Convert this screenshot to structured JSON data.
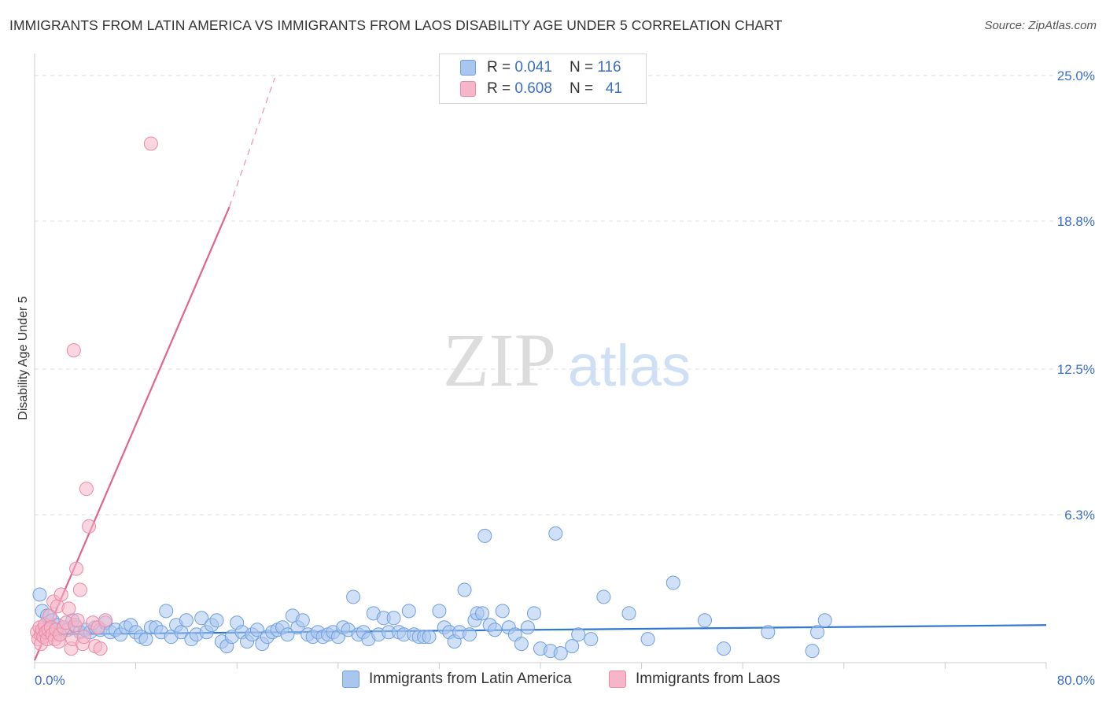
{
  "header": {
    "title": "IMMIGRANTS FROM LATIN AMERICA VS IMMIGRANTS FROM LAOS DISABILITY AGE UNDER 5 CORRELATION CHART",
    "source": "Source: ZipAtlas.com"
  },
  "watermark": {
    "zip": "ZIP",
    "atlas": "atlas"
  },
  "legend": {
    "rows": [
      {
        "r_label": "R =",
        "r_value": "0.041",
        "n_label": "N =",
        "n_value": "116"
      },
      {
        "r_label": "R =",
        "r_value": "0.608",
        "n_label": "N =",
        "n_value": "41"
      }
    ]
  },
  "bottom_legend": {
    "series1": "Immigrants from Latin America",
    "series2": "Immigrants from Laos"
  },
  "colors": {
    "blue_fill": "#a9c6ee",
    "blue_stroke": "#6f9fde",
    "blue_line": "#2f78d0",
    "pink_fill": "#f6b5c8",
    "pink_stroke": "#e98aa6",
    "pink_line": "#e0648e",
    "axis_label": "#3a6fc4",
    "grid": "#dddddd"
  },
  "chart_data": {
    "type": "scatter",
    "title": "IMMIGRANTS FROM LATIN AMERICA VS IMMIGRANTS FROM LAOS DISABILITY AGE UNDER 5 CORRELATION CHART",
    "xlabel": "",
    "ylabel": "Disability Age Under 5",
    "xlim": [
      0,
      80
    ],
    "ylim": [
      0,
      25.6
    ],
    "x_tick_labels": [
      "0.0%",
      "80.0%"
    ],
    "y_ticks": [
      6.3,
      12.5,
      18.8,
      25.0
    ],
    "y_tick_labels": [
      "6.3%",
      "12.5%",
      "18.8%",
      "25.0%"
    ],
    "grid": "horizontal dashed",
    "legend_position": "top-center",
    "series": [
      {
        "name": "Immigrants from Latin America",
        "color": "#a9c6ee",
        "R": 0.041,
        "N": 116,
        "trend": {
          "x": [
            0,
            80
          ],
          "y": [
            1.2,
            1.6
          ]
        },
        "points": [
          [
            0.4,
            2.9
          ],
          [
            0.6,
            2.2
          ],
          [
            0.8,
            1.3
          ],
          [
            1.0,
            2.0
          ],
          [
            1.2,
            1.5
          ],
          [
            1.4,
            1.8
          ],
          [
            1.6,
            1.4
          ],
          [
            1.8,
            1.6
          ],
          [
            2.0,
            1.2
          ],
          [
            2.3,
            1.5
          ],
          [
            2.6,
            1.4
          ],
          [
            3.0,
            1.8
          ],
          [
            3.3,
            1.5
          ],
          [
            3.6,
            1.3
          ],
          [
            4.0,
            1.4
          ],
          [
            4.4,
            1.3
          ],
          [
            4.8,
            1.5
          ],
          [
            5.2,
            1.4
          ],
          [
            5.6,
            1.7
          ],
          [
            6.0,
            1.3
          ],
          [
            6.4,
            1.4
          ],
          [
            6.8,
            1.2
          ],
          [
            7.2,
            1.5
          ],
          [
            7.6,
            1.6
          ],
          [
            8.0,
            1.3
          ],
          [
            8.4,
            1.1
          ],
          [
            8.8,
            1.0
          ],
          [
            9.2,
            1.5
          ],
          [
            9.6,
            1.5
          ],
          [
            10.0,
            1.3
          ],
          [
            10.4,
            2.2
          ],
          [
            10.8,
            1.1
          ],
          [
            11.2,
            1.6
          ],
          [
            11.6,
            1.3
          ],
          [
            12.0,
            1.8
          ],
          [
            12.4,
            1.0
          ],
          [
            12.8,
            1.2
          ],
          [
            13.2,
            1.9
          ],
          [
            13.6,
            1.3
          ],
          [
            14.0,
            1.6
          ],
          [
            14.4,
            1.8
          ],
          [
            14.8,
            0.9
          ],
          [
            15.2,
            0.7
          ],
          [
            15.6,
            1.1
          ],
          [
            16.0,
            1.7
          ],
          [
            16.4,
            1.3
          ],
          [
            16.8,
            0.9
          ],
          [
            17.2,
            1.2
          ],
          [
            17.6,
            1.4
          ],
          [
            18.0,
            0.8
          ],
          [
            18.4,
            1.1
          ],
          [
            18.8,
            1.3
          ],
          [
            19.2,
            1.4
          ],
          [
            19.6,
            1.5
          ],
          [
            20.0,
            1.2
          ],
          [
            20.4,
            2.0
          ],
          [
            20.8,
            1.5
          ],
          [
            21.2,
            1.8
          ],
          [
            21.6,
            1.2
          ],
          [
            22.0,
            1.1
          ],
          [
            22.4,
            1.3
          ],
          [
            22.8,
            1.1
          ],
          [
            23.2,
            1.2
          ],
          [
            23.6,
            1.3
          ],
          [
            24.0,
            1.1
          ],
          [
            24.4,
            1.5
          ],
          [
            24.8,
            1.4
          ],
          [
            25.2,
            2.8
          ],
          [
            25.6,
            1.2
          ],
          [
            26.0,
            1.3
          ],
          [
            26.4,
            1.0
          ],
          [
            26.8,
            2.1
          ],
          [
            27.2,
            1.2
          ],
          [
            27.6,
            1.9
          ],
          [
            28.0,
            1.3
          ],
          [
            28.4,
            1.9
          ],
          [
            28.8,
            1.3
          ],
          [
            29.2,
            1.2
          ],
          [
            29.6,
            2.2
          ],
          [
            30.0,
            1.2
          ],
          [
            30.4,
            1.1
          ],
          [
            30.8,
            1.1
          ],
          [
            31.2,
            1.1
          ],
          [
            32.0,
            2.2
          ],
          [
            32.4,
            1.5
          ],
          [
            32.8,
            1.3
          ],
          [
            33.2,
            0.9
          ],
          [
            33.6,
            1.3
          ],
          [
            34.0,
            3.1
          ],
          [
            34.4,
            1.2
          ],
          [
            34.8,
            1.8
          ],
          [
            35.0,
            2.1
          ],
          [
            35.4,
            2.1
          ],
          [
            35.6,
            5.4
          ],
          [
            36.0,
            1.6
          ],
          [
            36.4,
            1.4
          ],
          [
            37.0,
            2.2
          ],
          [
            37.5,
            1.5
          ],
          [
            38.0,
            1.2
          ],
          [
            38.5,
            0.8
          ],
          [
            39.0,
            1.5
          ],
          [
            39.5,
            2.1
          ],
          [
            40.0,
            0.6
          ],
          [
            40.8,
            0.5
          ],
          [
            41.2,
            5.5
          ],
          [
            41.6,
            0.4
          ],
          [
            42.5,
            0.7
          ],
          [
            43.0,
            1.2
          ],
          [
            44.0,
            1.0
          ],
          [
            45.0,
            2.8
          ],
          [
            47.0,
            2.1
          ],
          [
            48.5,
            1.0
          ],
          [
            50.5,
            3.4
          ],
          [
            53.0,
            1.8
          ],
          [
            54.5,
            0.6
          ],
          [
            58.0,
            1.3
          ],
          [
            61.5,
            0.5
          ],
          [
            61.9,
            1.3
          ],
          [
            62.5,
            1.8
          ]
        ]
      },
      {
        "name": "Immigrants from Laos",
        "color": "#f6b5c8",
        "R": 0.608,
        "N": 41,
        "trend": {
          "x": [
            0,
            15.4
          ],
          "y": [
            0.1,
            19.4
          ],
          "dashed_extension": {
            "x": [
              15.4,
              19.0
            ],
            "y": [
              19.4,
              24.9
            ]
          }
        },
        "points": [
          [
            0.2,
            1.3
          ],
          [
            0.3,
            1.0
          ],
          [
            0.4,
            1.5
          ],
          [
            0.5,
            0.8
          ],
          [
            0.5,
            1.2
          ],
          [
            0.6,
            1.4
          ],
          [
            0.7,
            1.1
          ],
          [
            0.8,
            1.6
          ],
          [
            0.9,
            1.3
          ],
          [
            1.0,
            1.0
          ],
          [
            1.1,
            1.4
          ],
          [
            1.2,
            2.0
          ],
          [
            1.3,
            1.5
          ],
          [
            1.4,
            1.2
          ],
          [
            1.5,
            2.6
          ],
          [
            1.6,
            1.0
          ],
          [
            1.7,
            1.4
          ],
          [
            1.8,
            2.4
          ],
          [
            1.9,
            0.9
          ],
          [
            2.0,
            1.2
          ],
          [
            2.1,
            2.9
          ],
          [
            2.3,
            1.5
          ],
          [
            2.5,
            1.7
          ],
          [
            2.7,
            2.3
          ],
          [
            2.9,
            0.6
          ],
          [
            3.0,
            1.0
          ],
          [
            3.1,
            13.3
          ],
          [
            3.2,
            1.6
          ],
          [
            3.3,
            4.0
          ],
          [
            3.4,
            1.8
          ],
          [
            3.6,
            3.1
          ],
          [
            3.8,
            0.8
          ],
          [
            3.9,
            1.1
          ],
          [
            4.1,
            7.4
          ],
          [
            4.3,
            5.8
          ],
          [
            4.6,
            1.7
          ],
          [
            4.8,
            0.7
          ],
          [
            5.0,
            1.5
          ],
          [
            5.2,
            0.6
          ],
          [
            5.6,
            1.8
          ],
          [
            9.2,
            22.1
          ]
        ]
      }
    ]
  }
}
